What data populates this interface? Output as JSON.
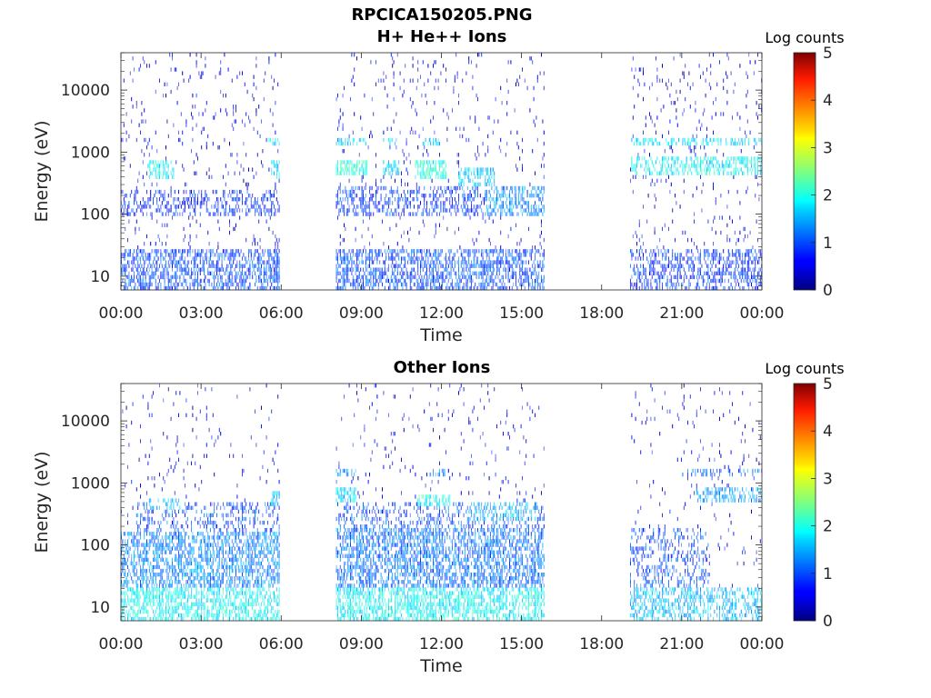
{
  "figure": {
    "title": "RPCICA150205.PNG"
  },
  "chart_data": [
    {
      "type": "heatmap",
      "title": "H+ He++ Ions",
      "xlabel": "Time",
      "ylabel": "Energy (eV)",
      "y_scale": "log",
      "ylim": [
        6,
        40000
      ],
      "x_ticks": [
        "00:00",
        "03:00",
        "06:00",
        "09:00",
        "12:00",
        "15:00",
        "18:00",
        "21:00",
        "00:00"
      ],
      "y_ticks": [
        "10",
        "100",
        "1000",
        "10000"
      ],
      "colorbar": {
        "label": "Log counts",
        "ticks": [
          "0",
          "1",
          "2",
          "3",
          "4",
          "5"
        ],
        "range": [
          0,
          5
        ],
        "colormap": "jet"
      },
      "grid": false,
      "data_intervals_hours": [
        [
          0.0,
          5.95
        ],
        [
          8.05,
          15.85
        ],
        [
          19.05,
          24.0
        ]
      ],
      "bands": [
        {
          "t0": 0.0,
          "t1": 5.95,
          "e0": 6,
          "e1": 28,
          "level": 0.9,
          "density": 0.55
        },
        {
          "t0": 0.0,
          "t1": 5.95,
          "e0": 90,
          "e1": 250,
          "level": 0.7,
          "density": 0.35
        },
        {
          "t0": 1.0,
          "t1": 2.0,
          "e0": 380,
          "e1": 700,
          "level": 1.8,
          "density": 0.45
        },
        {
          "t0": 5.6,
          "t1": 5.95,
          "e0": 380,
          "e1": 700,
          "level": 1.7,
          "density": 0.6
        },
        {
          "t0": 5.5,
          "t1": 5.95,
          "e0": 1300,
          "e1": 1800,
          "level": 1.7,
          "density": 0.6
        },
        {
          "t0": 8.05,
          "t1": 15.85,
          "e0": 6,
          "e1": 28,
          "level": 0.9,
          "density": 0.55
        },
        {
          "t0": 8.05,
          "t1": 15.85,
          "e0": 90,
          "e1": 300,
          "level": 0.8,
          "density": 0.4
        },
        {
          "t0": 8.05,
          "t1": 9.2,
          "e0": 400,
          "e1": 700,
          "level": 2.0,
          "density": 0.7
        },
        {
          "t0": 8.05,
          "t1": 9.2,
          "e0": 1200,
          "e1": 1600,
          "level": 1.6,
          "density": 0.5
        },
        {
          "t0": 9.8,
          "t1": 10.4,
          "e0": 1200,
          "e1": 1700,
          "level": 1.7,
          "density": 0.5
        },
        {
          "t0": 9.8,
          "t1": 10.4,
          "e0": 400,
          "e1": 700,
          "level": 1.6,
          "density": 0.5
        },
        {
          "t0": 11.0,
          "t1": 12.2,
          "e0": 380,
          "e1": 700,
          "level": 2.0,
          "density": 0.6
        },
        {
          "t0": 11.2,
          "t1": 12.0,
          "e0": 1200,
          "e1": 1600,
          "level": 1.6,
          "density": 0.5
        },
        {
          "t0": 12.6,
          "t1": 14.0,
          "e0": 300,
          "e1": 550,
          "level": 1.6,
          "density": 0.5
        },
        {
          "t0": 13.6,
          "t1": 15.85,
          "e0": 100,
          "e1": 280,
          "level": 1.2,
          "density": 0.5
        },
        {
          "t0": 19.05,
          "t1": 24.0,
          "e0": 6,
          "e1": 28,
          "level": 0.8,
          "density": 0.45
        },
        {
          "t0": 19.1,
          "t1": 24.0,
          "e0": 400,
          "e1": 800,
          "level": 1.8,
          "density": 0.5
        },
        {
          "t0": 19.1,
          "t1": 24.0,
          "e0": 1200,
          "e1": 1700,
          "level": 1.7,
          "density": 0.45
        }
      ],
      "background": {
        "level": 0.4,
        "density": 0.05
      }
    },
    {
      "type": "heatmap",
      "title": "Other Ions",
      "xlabel": "Time",
      "ylabel": "Energy (eV)",
      "y_scale": "log",
      "ylim": [
        6,
        40000
      ],
      "x_ticks": [
        "00:00",
        "03:00",
        "06:00",
        "09:00",
        "12:00",
        "15:00",
        "18:00",
        "21:00",
        "00:00"
      ],
      "y_ticks": [
        "10",
        "100",
        "1000",
        "10000"
      ],
      "colorbar": {
        "label": "Log counts",
        "ticks": [
          "0",
          "1",
          "2",
          "3",
          "4",
          "5"
        ],
        "range": [
          0,
          5
        ],
        "colormap": "jet"
      },
      "grid": false,
      "data_intervals_hours": [
        [
          0.0,
          5.95
        ],
        [
          8.05,
          15.85
        ],
        [
          19.05,
          24.0
        ]
      ],
      "bands": [
        {
          "t0": 0.0,
          "t1": 5.95,
          "e0": 6,
          "e1": 20,
          "level": 1.8,
          "density": 0.6
        },
        {
          "t0": 0.0,
          "t1": 5.95,
          "e0": 20,
          "e1": 160,
          "level": 1.2,
          "density": 0.55
        },
        {
          "t0": 0.5,
          "t1": 5.95,
          "e0": 160,
          "e1": 500,
          "level": 0.9,
          "density": 0.3
        },
        {
          "t0": 1.0,
          "t1": 2.2,
          "e0": 380,
          "e1": 600,
          "level": 1.5,
          "density": 0.35
        },
        {
          "t0": 5.6,
          "t1": 5.95,
          "e0": 400,
          "e1": 700,
          "level": 1.5,
          "density": 0.5
        },
        {
          "t0": 8.05,
          "t1": 15.85,
          "e0": 6,
          "e1": 20,
          "level": 1.8,
          "density": 0.6
        },
        {
          "t0": 8.05,
          "t1": 15.85,
          "e0": 20,
          "e1": 180,
          "level": 1.1,
          "density": 0.55
        },
        {
          "t0": 8.05,
          "t1": 15.85,
          "e0": 180,
          "e1": 500,
          "level": 0.9,
          "density": 0.3
        },
        {
          "t0": 8.05,
          "t1": 8.8,
          "e0": 500,
          "e1": 800,
          "level": 1.6,
          "density": 0.6
        },
        {
          "t0": 8.05,
          "t1": 8.8,
          "e0": 1300,
          "e1": 1700,
          "level": 1.3,
          "density": 0.5
        },
        {
          "t0": 11.1,
          "t1": 12.3,
          "e0": 420,
          "e1": 650,
          "level": 1.9,
          "density": 0.6
        },
        {
          "t0": 11.5,
          "t1": 12.2,
          "e0": 1300,
          "e1": 1700,
          "level": 1.2,
          "density": 0.4
        },
        {
          "t0": 13.0,
          "t1": 15.5,
          "e0": 250,
          "e1": 500,
          "level": 1.4,
          "density": 0.45
        },
        {
          "t0": 19.05,
          "t1": 24.0,
          "e0": 6,
          "e1": 22,
          "level": 1.5,
          "density": 0.45
        },
        {
          "t0": 19.05,
          "t1": 22.0,
          "e0": 22,
          "e1": 200,
          "level": 0.9,
          "density": 0.3
        },
        {
          "t0": 21.5,
          "t1": 24.0,
          "e0": 500,
          "e1": 800,
          "level": 1.3,
          "density": 0.45
        },
        {
          "t0": 21.0,
          "t1": 24.0,
          "e0": 1300,
          "e1": 1700,
          "level": 1.0,
          "density": 0.35
        }
      ],
      "background": {
        "level": 0.4,
        "density": 0.03
      }
    }
  ]
}
